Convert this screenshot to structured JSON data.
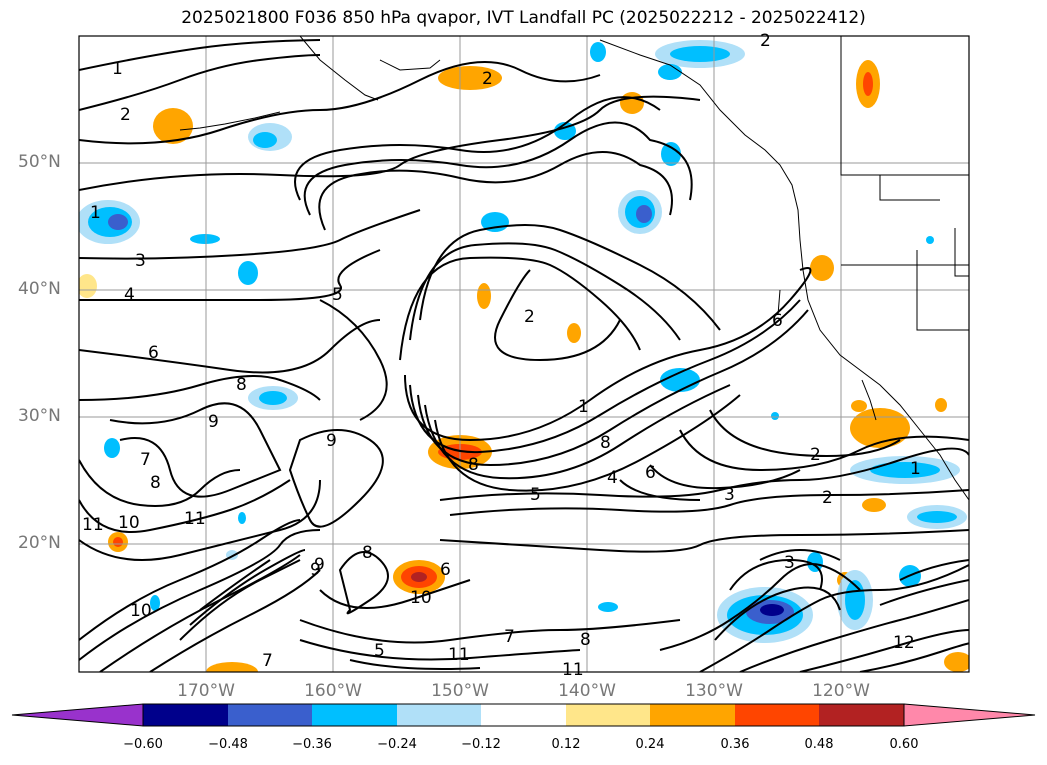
{
  "title": "2025021800 F036 850 hPa qvapor, IVT Landfall PC (2025022212 - 2025022412)",
  "axes": {
    "lat_labels": [
      "50°N",
      "40°N",
      "30°N",
      "20°N"
    ],
    "lon_labels": [
      "170°W",
      "160°W",
      "150°W",
      "140°W",
      "130°W",
      "120°W"
    ]
  },
  "contour_labels": [
    "1",
    "2",
    "2",
    "1",
    "2",
    "3",
    "4",
    "5",
    "2",
    "6",
    "8",
    "9",
    "1",
    "8",
    "6",
    "4",
    "5",
    "2",
    "3",
    "2",
    "1",
    "7",
    "8",
    "8",
    "9",
    "11",
    "10",
    "11",
    "10",
    "9",
    "8",
    "6",
    "7",
    "10",
    "11",
    "11",
    "7",
    "8",
    "3",
    "12",
    "6",
    "9",
    "5"
  ],
  "colorbar": {
    "tick_labels": [
      "−0.60",
      "−0.48",
      "−0.36",
      "−0.24",
      "−0.12",
      "0.12",
      "0.24",
      "0.36",
      "0.48",
      "0.60"
    ],
    "colors": [
      "#9932cc",
      "#00008b",
      "#3a5fcd",
      "#00bfff",
      "#b0e0f8",
      "#ffffff",
      "#ffe68a",
      "#ffa500",
      "#ff4500",
      "#b22222",
      "#ff88aa"
    ]
  }
}
